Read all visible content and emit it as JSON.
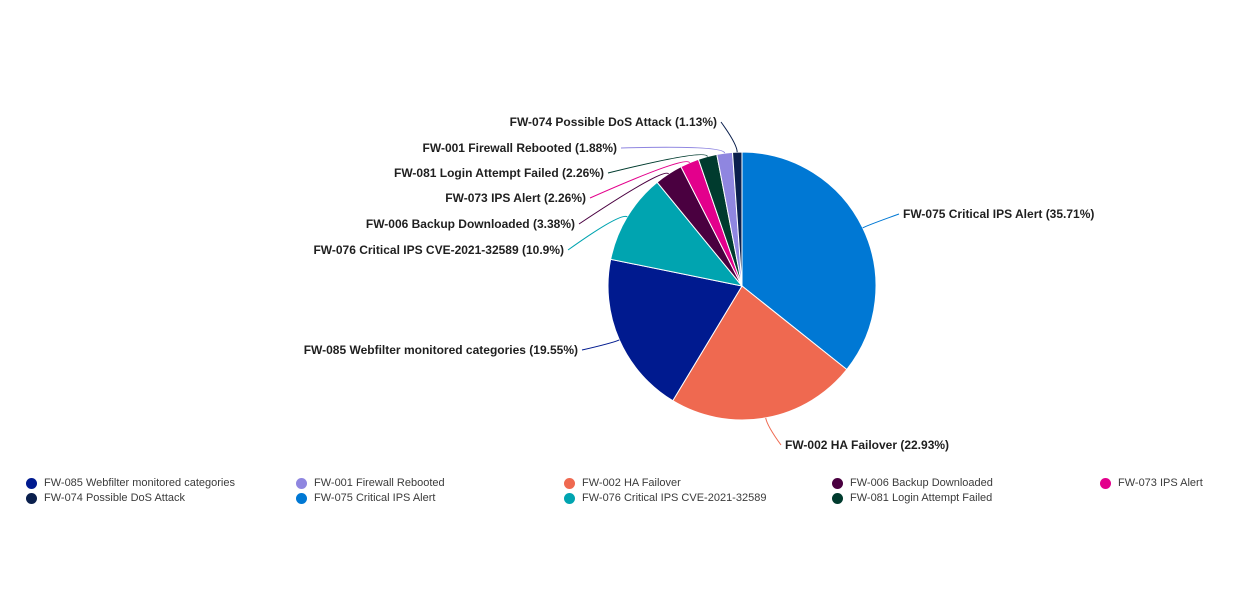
{
  "chart_data": {
    "type": "pie",
    "title": "",
    "slices": [
      {
        "name": "FW-075 Critical IPS Alert",
        "value": 35.71,
        "label": "FW-075 Critical IPS Alert (35.71%)",
        "color": "#0078d4"
      },
      {
        "name": "FW-002 HA Failover",
        "value": 22.93,
        "label": "FW-002 HA Failover (22.93%)",
        "color": "#ef6950"
      },
      {
        "name": "FW-085 Webfilter monitored categories",
        "value": 19.55,
        "label": "FW-085 Webfilter monitored categories (19.55%)",
        "color": "#001a8f"
      },
      {
        "name": "FW-076 Critical IPS CVE-2021-32589",
        "value": 10.9,
        "label": "FW-076 Critical IPS CVE-2021-32589 (10.9%)",
        "color": "#00a4b0"
      },
      {
        "name": "FW-006 Backup Downloaded",
        "value": 3.38,
        "label": "FW-006 Backup Downloaded (3.38%)",
        "color": "#4a0040"
      },
      {
        "name": "FW-073 IPS Alert",
        "value": 2.26,
        "label": "FW-073 IPS Alert (2.26%)",
        "color": "#e3008c"
      },
      {
        "name": "FW-081 Login Attempt Failed",
        "value": 2.26,
        "label": "FW-081 Login Attempt Failed (2.26%)",
        "color": "#003b2e"
      },
      {
        "name": "FW-001 Firewall Rebooted",
        "value": 1.88,
        "label": "FW-001 Firewall Rebooted (1.88%)",
        "color": "#8f86e0"
      },
      {
        "name": "FW-074 Possible DoS Attack",
        "value": 1.13,
        "label": "FW-074 Possible DoS Attack (1.13%)",
        "color": "#0a1f4d"
      }
    ],
    "legend": {
      "placement": "bottom",
      "items": [
        {
          "label": "FW-085 Webfilter monitored categories",
          "color": "#001a8f"
        },
        {
          "label": "FW-001 Firewall Rebooted",
          "color": "#8f86e0"
        },
        {
          "label": "FW-002 HA Failover",
          "color": "#ef6950"
        },
        {
          "label": "FW-006 Backup Downloaded",
          "color": "#4a0040"
        },
        {
          "label": "FW-073 IPS Alert",
          "color": "#e3008c"
        },
        {
          "label": "FW-074 Possible DoS Attack",
          "color": "#0a1f4d"
        },
        {
          "label": "FW-075 Critical IPS Alert",
          "color": "#0078d4"
        },
        {
          "label": "FW-076 Critical IPS CVE-2021-32589",
          "color": "#00a4b0"
        },
        {
          "label": "FW-081 Login Attempt Failed",
          "color": "#003b2e"
        }
      ]
    }
  }
}
